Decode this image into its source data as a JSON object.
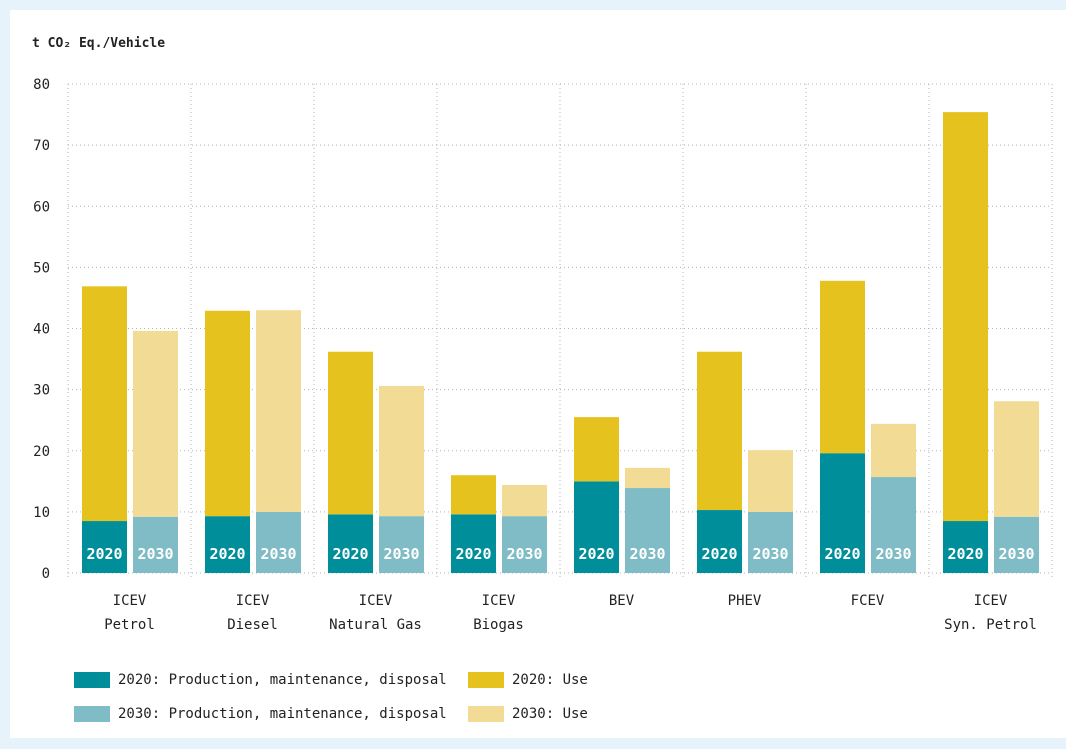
{
  "chart_data": {
    "type": "bar",
    "stacked": true,
    "title": "",
    "xlabel": "",
    "ylabel": "t CO₂ Eq./Vehicle",
    "ylim": [
      0,
      80
    ],
    "yticks": [
      0,
      10,
      20,
      30,
      40,
      50,
      60,
      70,
      80
    ],
    "grid": true,
    "legend_position": "bottom",
    "categories": [
      [
        "ICEV",
        "Petrol"
      ],
      [
        "ICEV",
        "Diesel"
      ],
      [
        "ICEV",
        "Natural Gas"
      ],
      [
        "ICEV",
        "Biogas"
      ],
      [
        "BEV"
      ],
      [
        "PHEV"
      ],
      [
        "FCEV"
      ],
      [
        "ICEV",
        "Syn. Petrol"
      ]
    ],
    "stacks": [
      "2020",
      "2030"
    ],
    "series": [
      {
        "name": "2020: Production, maintenance, disposal",
        "stack": "2020",
        "color": "#008e9a",
        "values": [
          8.5,
          9.3,
          9.6,
          9.6,
          15.0,
          10.3,
          19.6,
          8.5
        ]
      },
      {
        "name": "2020: Use",
        "stack": "2020",
        "color": "#e6c21e",
        "values": [
          38.4,
          33.6,
          26.6,
          6.4,
          10.5,
          25.9,
          28.2,
          66.9
        ]
      },
      {
        "name": "2030: Production, maintenance, disposal",
        "stack": "2030",
        "color": "#7fbcc5",
        "values": [
          9.2,
          10.0,
          9.3,
          9.3,
          13.9,
          10.0,
          15.7,
          9.2
        ]
      },
      {
        "name": "2030: Use",
        "stack": "2030",
        "color": "#f2dc95",
        "values": [
          30.4,
          33.0,
          21.3,
          5.1,
          3.3,
          10.1,
          8.7,
          18.9
        ]
      }
    ]
  }
}
